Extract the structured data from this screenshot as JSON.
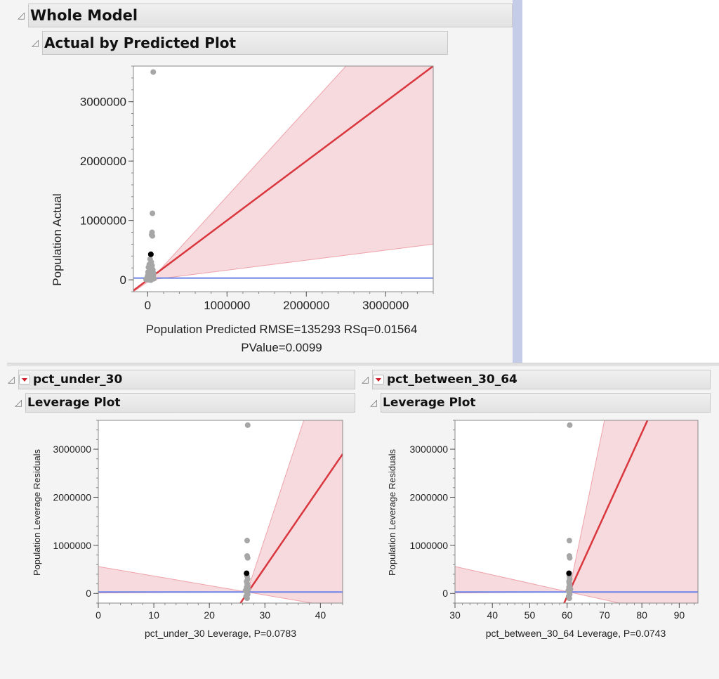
{
  "whole_model": {
    "title": "Whole Model",
    "plot_title": "Actual by Predicted Plot",
    "stats_line1": "Population Predicted RMSE=135293 RSq=0.01564",
    "stats_line2": "PValue=0.0099"
  },
  "sections": [
    {
      "title": "pct_under_30",
      "plot_title": "Leverage Plot"
    },
    {
      "title": "pct_between_30_64",
      "plot_title": "Leverage Plot"
    }
  ],
  "colors": {
    "fit_line": "#d9363e",
    "band_fill": "#f6dadd",
    "band_edge": "#eea3aa",
    "mean_line": "#6b82e6",
    "points": "#a6a6a6",
    "highlight_point": "#000000"
  },
  "chart_data": [
    {
      "type": "scatter",
      "title": "",
      "xlabel": "Population Predicted",
      "ylabel": "Population Actual",
      "xlim": [
        -180000,
        3600000
      ],
      "ylim": [
        -200000,
        3600000
      ],
      "xticks": [
        0,
        1000000,
        2000000,
        3000000
      ],
      "xtick_labels": [
        "0",
        "1000000",
        "2000000",
        "3000000"
      ],
      "yticks": [
        0,
        1000000,
        2000000,
        3000000
      ],
      "ytick_labels": [
        "0",
        "1000000",
        "2000000",
        "3000000"
      ],
      "fit_line": [
        [
          -180000,
          -180000
        ],
        [
          3600000,
          3600000
        ]
      ],
      "confidence_band": {
        "upper": [
          [
            -180000,
            -200000
          ],
          [
            40000,
            0
          ],
          [
            2500000,
            3600000
          ]
        ],
        "lower": [
          [
            -180000,
            -200000
          ],
          [
            40000,
            0
          ],
          [
            3600000,
            600000
          ]
        ]
      },
      "mean_y": 30000,
      "points": [
        [
          70000,
          3500000
        ],
        [
          60000,
          1120000
        ],
        [
          55000,
          800000
        ],
        [
          50000,
          760000
        ],
        [
          60000,
          740000
        ],
        [
          40000,
          430000
        ],
        [
          30000,
          350000
        ],
        [
          45000,
          300000
        ],
        [
          20000,
          260000
        ],
        [
          55000,
          240000
        ],
        [
          10000,
          210000
        ],
        [
          35000,
          190000
        ],
        [
          65000,
          170000
        ],
        [
          25000,
          150000
        ],
        [
          5000,
          130000
        ],
        [
          50000,
          120000
        ],
        [
          15000,
          100000
        ],
        [
          40000,
          90000
        ],
        [
          70000,
          80000
        ],
        [
          0,
          70000
        ],
        [
          30000,
          60000
        ],
        [
          20000,
          50000
        ],
        [
          60000,
          45000
        ],
        [
          10000,
          40000
        ],
        [
          45000,
          35000
        ],
        [
          -10000,
          30000
        ],
        [
          35000,
          25000
        ],
        [
          80000,
          20000
        ],
        [
          25000,
          15000
        ],
        [
          55000,
          10000
        ],
        [
          -20000,
          5000
        ],
        [
          15000,
          0
        ],
        [
          40000,
          -5000
        ],
        [
          65000,
          60000
        ],
        [
          5000,
          85000
        ],
        [
          75000,
          110000
        ]
      ],
      "highlight": [
        40000,
        430000
      ]
    },
    {
      "type": "scatter",
      "title": "",
      "xlabel": "pct_under_30 Leverage, P=0.0783",
      "ylabel": "Population Leverage Residuals",
      "xlim": [
        0,
        44
      ],
      "ylim": [
        -200000,
        3600000
      ],
      "xticks": [
        0,
        10,
        20,
        30,
        40
      ],
      "xtick_labels": [
        "0",
        "10",
        "20",
        "30",
        "40"
      ],
      "yticks": [
        0,
        1000000,
        2000000,
        3000000
      ],
      "ytick_labels": [
        "0",
        "1000000",
        "2000000",
        "3000000"
      ],
      "fit_line": [
        [
          25.6,
          -200000
        ],
        [
          44,
          2900000
        ]
      ],
      "confidence_band": {
        "upper_left": [
          [
            0,
            560000
          ],
          [
            26.8,
            30000
          ]
        ],
        "lower_left": [
          [
            0,
            10000
          ],
          [
            26.8,
            30000
          ]
        ],
        "upper_right": [
          [
            26.8,
            30000
          ],
          [
            37,
            3600000
          ]
        ],
        "lower_right": [
          [
            26.8,
            30000
          ],
          [
            38.5,
            -200000
          ]
        ]
      },
      "mean_y": 30000,
      "points": [
        [
          26.9,
          3500000
        ],
        [
          26.8,
          1100000
        ],
        [
          26.8,
          780000
        ],
        [
          26.9,
          740000
        ],
        [
          26.7,
          420000
        ],
        [
          26.8,
          360000
        ],
        [
          26.9,
          300000
        ],
        [
          26.7,
          250000
        ],
        [
          26.8,
          210000
        ],
        [
          26.9,
          170000
        ],
        [
          26.7,
          130000
        ],
        [
          26.8,
          100000
        ],
        [
          26.9,
          70000
        ],
        [
          26.7,
          40000
        ],
        [
          26.8,
          10000
        ],
        [
          26.9,
          -20000
        ],
        [
          26.6,
          -60000
        ],
        [
          26.8,
          -100000
        ],
        [
          26.5,
          60000
        ],
        [
          27.0,
          90000
        ]
      ],
      "highlight": [
        26.7,
        420000
      ]
    },
    {
      "type": "scatter",
      "title": "",
      "xlabel": "pct_between_30_64 Leverage, P=0.0743",
      "ylabel": "Population Leverage Residuals",
      "xlim": [
        30,
        95
      ],
      "ylim": [
        -200000,
        3600000
      ],
      "xticks": [
        30,
        40,
        50,
        60,
        70,
        80,
        90
      ],
      "xtick_labels": [
        "30",
        "40",
        "50",
        "60",
        "70",
        "80",
        "90"
      ],
      "yticks": [
        0,
        1000000,
        2000000,
        3000000
      ],
      "ytick_labels": [
        "0",
        "1000000",
        "2000000",
        "3000000"
      ],
      "fit_line": [
        [
          59.2,
          -200000
        ],
        [
          81.5,
          3600000
        ]
      ],
      "confidence_band": {
        "upper_left": [
          [
            30,
            560000
          ],
          [
            60.5,
            30000
          ]
        ],
        "lower_left": [
          [
            30,
            10000
          ],
          [
            60.5,
            30000
          ]
        ],
        "upper_right": [
          [
            60.5,
            30000
          ],
          [
            70,
            3600000
          ]
        ],
        "lower_right": [
          [
            60.5,
            30000
          ],
          [
            74,
            -200000
          ]
        ]
      },
      "mean_y": 30000,
      "points": [
        [
          60.7,
          3500000
        ],
        [
          60.6,
          1100000
        ],
        [
          60.6,
          780000
        ],
        [
          60.7,
          740000
        ],
        [
          60.5,
          420000
        ],
        [
          60.6,
          360000
        ],
        [
          60.7,
          300000
        ],
        [
          60.5,
          250000
        ],
        [
          60.6,
          210000
        ],
        [
          60.7,
          170000
        ],
        [
          60.5,
          130000
        ],
        [
          60.6,
          100000
        ],
        [
          60.7,
          70000
        ],
        [
          60.5,
          40000
        ],
        [
          60.6,
          10000
        ],
        [
          60.7,
          -20000
        ],
        [
          60.4,
          -60000
        ],
        [
          60.6,
          -100000
        ],
        [
          60.3,
          60000
        ],
        [
          60.9,
          90000
        ]
      ],
      "highlight": [
        60.5,
        420000
      ]
    }
  ]
}
